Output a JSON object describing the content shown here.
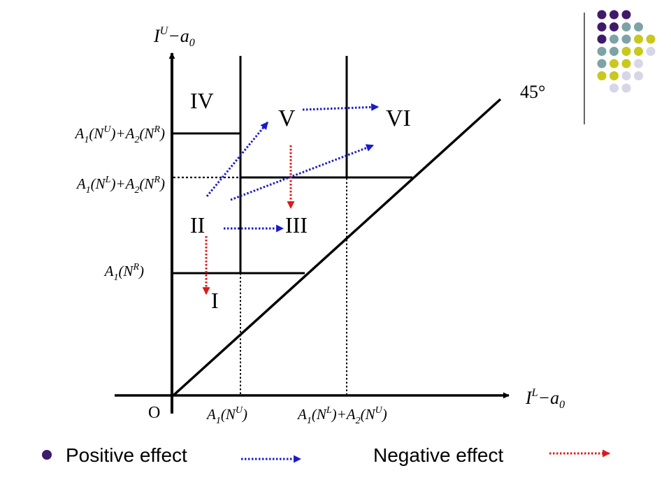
{
  "colors": {
    "axis": "#000000",
    "positive": "#1a1acc",
    "negative": "#e01818",
    "dot_purple": "#3f1a6b",
    "dot_teal": "#7da3a6",
    "dot_yellow": "#c8c81e",
    "dot_lavender": "#d6d6e8"
  },
  "axes": {
    "y_label": {
      "base": "I",
      "sup": "U",
      "rest": "−a",
      "sub": "0"
    },
    "x_label": {
      "base": "I",
      "sup": "L",
      "rest": "−a",
      "sub": "0"
    },
    "origin": "O",
    "angle": "45°"
  },
  "regions": [
    "I",
    "II",
    "III",
    "IV",
    "V",
    "VI"
  ],
  "y_ticks": [
    {
      "id": "upper",
      "parts": [
        {
          "t": "A"
        },
        {
          "sub": "1"
        },
        {
          "t": "(N"
        },
        {
          "sup": "U"
        },
        {
          "t": ")+A"
        },
        {
          "sub": "2"
        },
        {
          "t": "(N"
        },
        {
          "sup": "R"
        },
        {
          "t": ")"
        }
      ]
    },
    {
      "id": "middle",
      "parts": [
        {
          "t": "A"
        },
        {
          "sub": "1"
        },
        {
          "t": "(N"
        },
        {
          "sup": "L"
        },
        {
          "t": ")+A"
        },
        {
          "sub": "2"
        },
        {
          "t": "(N"
        },
        {
          "sup": "R"
        },
        {
          "t": ")"
        }
      ]
    },
    {
      "id": "lower",
      "parts": [
        {
          "t": "A"
        },
        {
          "sub": "1"
        },
        {
          "t": "(N"
        },
        {
          "sup": "R"
        },
        {
          "t": ")"
        }
      ]
    }
  ],
  "x_ticks": [
    {
      "id": "left",
      "parts": [
        {
          "t": "A"
        },
        {
          "sub": "1"
        },
        {
          "t": "(N"
        },
        {
          "sup": "U"
        },
        {
          "t": ")"
        }
      ]
    },
    {
      "id": "right",
      "parts": [
        {
          "t": "A"
        },
        {
          "sub": "1"
        },
        {
          "t": "(N"
        },
        {
          "sup": "L"
        },
        {
          "t": ")+A"
        },
        {
          "sub": "2"
        },
        {
          "t": "(N"
        },
        {
          "sup": "U"
        },
        {
          "t": ")"
        }
      ]
    }
  ],
  "legend": {
    "positive": "Positive effect",
    "negative": "Negative effect"
  },
  "decoration": {
    "dot_grid": [
      [
        "dot_purple",
        "dot_purple",
        "dot_purple"
      ],
      [
        "dot_purple",
        "dot_purple",
        "dot_teal",
        "dot_teal"
      ],
      [
        "dot_purple",
        "dot_teal",
        "dot_teal",
        "dot_yellow",
        "dot_yellow"
      ],
      [
        "dot_teal",
        "dot_teal",
        "dot_yellow",
        "dot_yellow",
        "dot_lavender"
      ],
      [
        "dot_teal",
        "dot_yellow",
        "dot_yellow",
        "dot_lavender"
      ],
      [
        "dot_yellow",
        "dot_yellow",
        "dot_lavender",
        "dot_lavender"
      ],
      [
        "dot_lavender",
        "dot_lavender"
      ]
    ]
  }
}
